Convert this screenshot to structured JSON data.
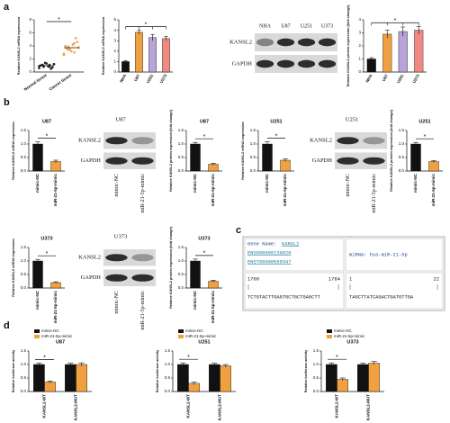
{
  "panel_labels": [
    "a",
    "b",
    "c",
    "d"
  ],
  "chart_data": [
    {
      "type": "scatter",
      "categories": [
        "Normal tissue",
        "Cancer tissue"
      ],
      "ylabel": "Relative KANSL2 mRNA expression",
      "series": [
        {
          "color": "#222222",
          "values": [
            0.6,
            0.8,
            1.0,
            1.2,
            0.9,
            1.1,
            0.7,
            1.3,
            1.0,
            0.5,
            1.4,
            0.9,
            1.1,
            0.8,
            1.2
          ]
        },
        {
          "color": "#f0a040",
          "values": [
            2.6,
            3.0,
            3.4,
            3.8,
            4.2,
            3.6,
            4.6,
            3.2,
            4.0,
            5.2,
            3.5,
            2.8,
            4.4,
            3.9,
            3.7
          ]
        }
      ],
      "ylim": [
        0,
        8
      ],
      "yticks": [
        0,
        2,
        4,
        6,
        8
      ],
      "significance": "*"
    },
    {
      "type": "bar",
      "categories": [
        "NHA",
        "U87",
        "U251",
        "U373"
      ],
      "ylabel": "Relative KANSL2 mRNA expression",
      "values": [
        1.0,
        3.8,
        3.3,
        3.2
      ],
      "errors": [
        0.1,
        0.2,
        0.3,
        0.2
      ],
      "colors": [
        "#111111",
        "#f0a040",
        "#b7a4d8",
        "#f08a80"
      ],
      "ylim": [
        0,
        5
      ],
      "yticks": [
        0,
        1,
        2,
        3,
        4,
        5
      ],
      "significance": "*"
    },
    {
      "type": "bar",
      "categories": [
        "NHA",
        "U87",
        "U251",
        "U373"
      ],
      "ylabel": "Relative KANSL2 protein expression (fold change)",
      "values": [
        1.0,
        2.9,
        3.1,
        3.2
      ],
      "errors": [
        0.1,
        0.3,
        0.35,
        0.3
      ],
      "colors": [
        "#111111",
        "#f0a040",
        "#b7a4d8",
        "#f08a80"
      ],
      "ylim": [
        0,
        4
      ],
      "yticks": [
        0,
        1,
        2,
        3,
        4
      ],
      "significance": "*"
    },
    {
      "type": "bar",
      "title": "U87",
      "categories": [
        "mimic-NC",
        "miR-21-5p-mimic"
      ],
      "ylabel": "Relative KANSL2 mRNA expression",
      "values": [
        1.0,
        0.35
      ],
      "errors": [
        0.08,
        0.05
      ],
      "colors": [
        "#111111",
        "#f0a040"
      ],
      "ylim": [
        0,
        1.5
      ],
      "yticks": [
        {
          "value": 0,
          "label": "0.0"
        },
        {
          "value": 0.5,
          "label": "0.5"
        },
        {
          "value": 1,
          "label": "1.0"
        },
        {
          "value": 1.5,
          "label": "1.5"
        }
      ],
      "significance": "*"
    },
    {
      "type": "bar",
      "title": "U87",
      "categories": [
        "mimic-NC",
        "miR-21-5p-mimic"
      ],
      "ylabel": "Relative KANSL2 protein expression (fold change)",
      "values": [
        1.0,
        0.25
      ],
      "errors": [
        0.06,
        0.04
      ],
      "colors": [
        "#111111",
        "#f0a040"
      ],
      "ylim": [
        0,
        1.5
      ],
      "yticks": [
        {
          "value": 0,
          "label": "0.0"
        },
        {
          "value": 0.5,
          "label": "0.5"
        },
        {
          "value": 1,
          "label": "1.0"
        },
        {
          "value": 1.5,
          "label": "1.5"
        }
      ],
      "significance": "*"
    },
    {
      "type": "bar",
      "title": "U251",
      "categories": [
        "mimic-NC",
        "miR-21-5p-mimic"
      ],
      "ylabel": "Relative KANSL2 mRNA expression",
      "values": [
        1.0,
        0.4
      ],
      "errors": [
        0.08,
        0.05
      ],
      "colors": [
        "#111111",
        "#f0a040"
      ],
      "ylim": [
        0,
        1.5
      ],
      "yticks": [
        {
          "value": 0,
          "label": "0.0"
        },
        {
          "value": 0.5,
          "label": "0.5"
        },
        {
          "value": 1,
          "label": "1.0"
        },
        {
          "value": 1.5,
          "label": "1.5"
        }
      ],
      "significance": "*"
    },
    {
      "type": "bar",
      "title": "U251",
      "categories": [
        "mimic-NC",
        "miR-21-5p-mimic"
      ],
      "ylabel": "Relative KANSL2 protein expression (fold change)",
      "values": [
        1.0,
        0.35
      ],
      "errors": [
        0.06,
        0.04
      ],
      "colors": [
        "#111111",
        "#f0a040"
      ],
      "ylim": [
        0,
        1.5
      ],
      "yticks": [
        {
          "value": 0,
          "label": "0.0"
        },
        {
          "value": 0.5,
          "label": "0.5"
        },
        {
          "value": 1,
          "label": "1.0"
        },
        {
          "value": 1.5,
          "label": "1.5"
        }
      ],
      "significance": "*"
    },
    {
      "type": "bar",
      "title": "U373",
      "categories": [
        "mimic-NC",
        "miR-21-5p-mimic"
      ],
      "ylabel": "Relative KANSL2 mRNA expression",
      "values": [
        1.0,
        0.2
      ],
      "errors": [
        0.06,
        0.03
      ],
      "colors": [
        "#111111",
        "#f0a040"
      ],
      "ylim": [
        0,
        1.5
      ],
      "yticks": [
        {
          "value": 0,
          "label": "0.0"
        },
        {
          "value": 0.5,
          "label": "0.5"
        },
        {
          "value": 1,
          "label": "1.0"
        },
        {
          "value": 1.5,
          "label": "1.5"
        }
      ],
      "significance": "*"
    },
    {
      "type": "bar",
      "title": "U373",
      "categories": [
        "mimic-NC",
        "miR-21-5p-mimic"
      ],
      "ylabel": "Relative KANSL2 protein expression (fold change)",
      "values": [
        1.0,
        0.25
      ],
      "errors": [
        0.07,
        0.04
      ],
      "colors": [
        "#111111",
        "#f0a040"
      ],
      "ylim": [
        0,
        1.5
      ],
      "yticks": [
        {
          "value": 0,
          "label": "0.0"
        },
        {
          "value": 0.5,
          "label": "0.5"
        },
        {
          "value": 1,
          "label": "1.0"
        },
        {
          "value": 1.5,
          "label": "1.5"
        }
      ],
      "significance": "*"
    },
    {
      "type": "grouped-bar",
      "title": "U87",
      "categories": [
        "KANSL2-WT",
        "KANSL2-MUT"
      ],
      "ylabel": "Relative luciferase activity",
      "series": [
        {
          "name": "mimic-NC",
          "color": "#111111",
          "values": [
            1.0,
            1.0
          ],
          "errors": [
            0.05,
            0.05
          ]
        },
        {
          "name": "miR-21-5p-mimic",
          "color": "#f0a040",
          "values": [
            0.35,
            1.0
          ],
          "errors": [
            0.04,
            0.06
          ]
        }
      ],
      "ylim": [
        0,
        1.5
      ],
      "yticks": [
        {
          "value": 0,
          "label": "0.0"
        },
        {
          "value": 0.5,
          "label": "0.5"
        },
        {
          "value": 1,
          "label": "1.0"
        },
        {
          "value": 1.5,
          "label": "1.5"
        }
      ],
      "significance": "*"
    },
    {
      "type": "grouped-bar",
      "title": "U251",
      "categories": [
        "KANSL2-WT",
        "KANSL2-MUT"
      ],
      "ylabel": "Relative luciferase activity",
      "series": [
        {
          "name": "mimic-NC",
          "color": "#111111",
          "values": [
            1.0,
            1.0
          ],
          "errors": [
            0.06,
            0.05
          ]
        },
        {
          "name": "miR-21-5p-mimic",
          "color": "#f0a040",
          "values": [
            0.3,
            0.95
          ],
          "errors": [
            0.05,
            0.05
          ]
        }
      ],
      "ylim": [
        0,
        1.5
      ],
      "yticks": [
        {
          "value": 0,
          "label": "0.0"
        },
        {
          "value": 0.5,
          "label": "0.5"
        },
        {
          "value": 1,
          "label": "1.0"
        },
        {
          "value": 1.5,
          "label": "1.5"
        }
      ],
      "significance": "*"
    },
    {
      "type": "grouped-bar",
      "title": "U373",
      "categories": [
        "KANSL2-WT",
        "KANSL2-MUT"
      ],
      "ylabel": "Relative luciferase activity",
      "series": [
        {
          "name": "mimic-NC",
          "color": "#111111",
          "values": [
            1.0,
            1.0
          ],
          "errors": [
            0.06,
            0.05
          ]
        },
        {
          "name": "miR-21-5p-mimic",
          "color": "#f0a040",
          "values": [
            0.45,
            1.05
          ],
          "errors": [
            0.05,
            0.06
          ]
        }
      ],
      "ylim": [
        0,
        1.5
      ],
      "yticks": [
        {
          "value": 0,
          "label": "0.0"
        },
        {
          "value": 0.5,
          "label": "0.5"
        },
        {
          "value": 1,
          "label": "1.0"
        },
        {
          "value": 1.5,
          "label": "1.5"
        }
      ],
      "significance": "*"
    }
  ],
  "blots": [
    {
      "lanes": [
        "NHA",
        "U87",
        "U251",
        "U373"
      ],
      "bands": [
        "KANSL2",
        "GAPDH"
      ]
    },
    {
      "title": "U87",
      "lanes": [
        "mimic-NC",
        "miR-21-5p-mimic"
      ],
      "bands": [
        "KANSL2",
        "GAPDH"
      ]
    },
    {
      "title": "U251",
      "lanes": [
        "mimic-NC",
        "miR-21-5p-mimic"
      ],
      "bands": [
        "KANSL2",
        "GAPDH"
      ]
    },
    {
      "title": "U373",
      "lanes": [
        "mimic-NC",
        "miR-21-5p-mimic"
      ],
      "bands": [
        "KANSL2",
        "GAPDH"
      ]
    }
  ],
  "table": {
    "gene_label": "Gene Name:",
    "gene": "KANSL2",
    "ids": [
      "ENSG00000139620",
      "ENST00000550347"
    ],
    "mirna": "miRNA: hsa-miR-21-5p",
    "gene_start": 1760,
    "gene_end": 1784,
    "gene_sequence": "TCTGTACTTGAGTGCTGCTGAGCTT",
    "mirna_start": 1,
    "mirna_end": 22,
    "mirna_sequence": "TAGCTTATCAGACTGATGTTGA"
  }
}
